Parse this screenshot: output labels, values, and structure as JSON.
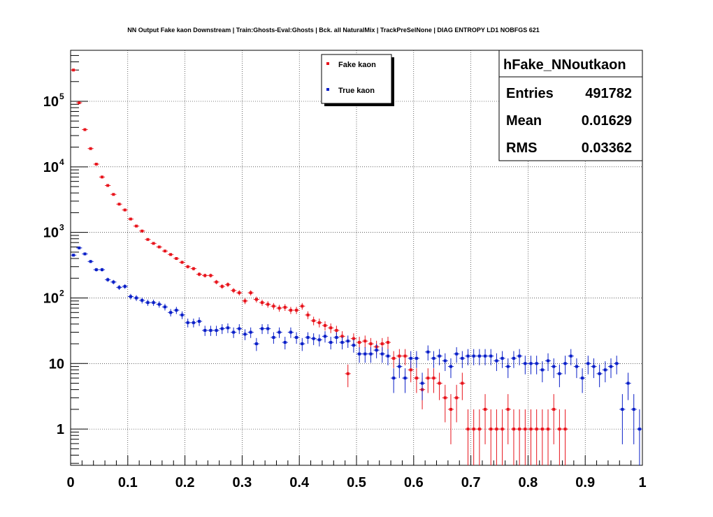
{
  "chart_data": {
    "type": "scatter",
    "title": "NN Output Fake kaon Downstream | Train:Ghosts-Eval:Ghosts | Bck. all NaturalMix | TrackPreSelNone | DIAG ENTROPY LD1 NOBFGS 621",
    "xlabel": "",
    "ylabel": "",
    "xlim": [
      0,
      1
    ],
    "ylim": [
      0.28,
      600000
    ],
    "y_scale": "log",
    "grid": true,
    "legend_position": "top-center",
    "x_ticks": [
      "0",
      "0.1",
      "0.2",
      "0.3",
      "0.4",
      "0.5",
      "0.6",
      "0.7",
      "0.8",
      "0.9",
      "1"
    ],
    "y_ticks": [
      {
        "value": 1,
        "base": "1",
        "exp": ""
      },
      {
        "value": 10,
        "base": "10",
        "exp": ""
      },
      {
        "value": 100,
        "base": "10",
        "exp": "2"
      },
      {
        "value": 1000,
        "base": "10",
        "exp": "3"
      },
      {
        "value": 10000,
        "base": "10",
        "exp": "4"
      },
      {
        "value": 100000,
        "base": "10",
        "exp": "5"
      }
    ],
    "series": [
      {
        "name": "Fake kaon",
        "color": "#e8141c",
        "x": [
          0.005,
          0.015,
          0.025,
          0.035,
          0.045,
          0.055,
          0.065,
          0.075,
          0.085,
          0.095,
          0.105,
          0.115,
          0.125,
          0.135,
          0.145,
          0.155,
          0.165,
          0.175,
          0.185,
          0.195,
          0.205,
          0.215,
          0.225,
          0.235,
          0.245,
          0.255,
          0.265,
          0.275,
          0.285,
          0.295,
          0.305,
          0.315,
          0.325,
          0.335,
          0.345,
          0.355,
          0.365,
          0.375,
          0.385,
          0.395,
          0.405,
          0.415,
          0.425,
          0.435,
          0.445,
          0.455,
          0.465,
          0.475,
          0.485,
          0.495,
          0.505,
          0.515,
          0.525,
          0.535,
          0.545,
          0.555,
          0.565,
          0.575,
          0.585,
          0.595,
          0.605,
          0.615,
          0.625,
          0.635,
          0.645,
          0.655,
          0.665,
          0.675,
          0.685,
          0.695,
          0.705,
          0.715,
          0.725,
          0.735,
          0.745,
          0.755,
          0.765,
          0.775,
          0.785,
          0.795,
          0.805,
          0.815,
          0.825,
          0.835,
          0.845,
          0.855,
          0.865
        ],
        "y": [
          300000,
          95000,
          37000,
          19000,
          11000,
          7000,
          5200,
          3800,
          2700,
          2200,
          1600,
          1250,
          1050,
          780,
          680,
          600,
          520,
          460,
          400,
          350,
          300,
          280,
          230,
          220,
          220,
          175,
          150,
          160,
          130,
          120,
          90,
          120,
          95,
          85,
          80,
          75,
          70,
          72,
          65,
          65,
          75,
          55,
          45,
          42,
          38,
          35,
          32,
          26,
          7,
          24,
          21,
          22,
          20,
          18,
          20,
          21,
          12,
          13,
          13,
          8,
          6,
          4,
          6,
          6,
          5,
          3,
          2,
          3,
          5,
          1,
          1,
          1,
          2,
          1,
          1,
          1,
          2,
          1,
          1,
          1,
          1,
          1,
          1,
          1,
          2,
          1,
          1
        ]
      },
      {
        "name": "True kaon",
        "color": "#0a1fc8",
        "x": [
          0.005,
          0.015,
          0.025,
          0.035,
          0.045,
          0.055,
          0.065,
          0.075,
          0.085,
          0.095,
          0.105,
          0.115,
          0.125,
          0.135,
          0.145,
          0.155,
          0.165,
          0.175,
          0.185,
          0.195,
          0.205,
          0.215,
          0.225,
          0.235,
          0.245,
          0.255,
          0.265,
          0.275,
          0.285,
          0.295,
          0.305,
          0.315,
          0.325,
          0.335,
          0.345,
          0.355,
          0.365,
          0.375,
          0.385,
          0.395,
          0.405,
          0.415,
          0.425,
          0.435,
          0.445,
          0.455,
          0.465,
          0.475,
          0.485,
          0.495,
          0.505,
          0.515,
          0.525,
          0.535,
          0.545,
          0.555,
          0.565,
          0.575,
          0.585,
          0.595,
          0.605,
          0.615,
          0.625,
          0.635,
          0.645,
          0.655,
          0.665,
          0.675,
          0.685,
          0.695,
          0.705,
          0.715,
          0.725,
          0.735,
          0.745,
          0.755,
          0.765,
          0.775,
          0.785,
          0.795,
          0.805,
          0.815,
          0.825,
          0.835,
          0.845,
          0.855,
          0.865,
          0.875,
          0.885,
          0.895,
          0.905,
          0.915,
          0.925,
          0.935,
          0.945,
          0.955,
          0.965,
          0.975,
          0.985,
          0.995
        ],
        "y": [
          450,
          580,
          470,
          360,
          270,
          270,
          190,
          175,
          145,
          150,
          105,
          100,
          92,
          85,
          85,
          80,
          73,
          60,
          65,
          55,
          42,
          42,
          44,
          32,
          32,
          32,
          34,
          35,
          30,
          34,
          28,
          30,
          20,
          34,
          34,
          25,
          30,
          21,
          30,
          25,
          20,
          25,
          24,
          23,
          26,
          21,
          25,
          21,
          22,
          19,
          14,
          14,
          14,
          16,
          14,
          13,
          6,
          9,
          6,
          12,
          12,
          5,
          15,
          12,
          13,
          11,
          9,
          14,
          12,
          13,
          13,
          13,
          13,
          13,
          11,
          12,
          9,
          12,
          13,
          10,
          10,
          10,
          8,
          11,
          9,
          7,
          10,
          13,
          9,
          6,
          10,
          9,
          7,
          8,
          9,
          10,
          2,
          5,
          2,
          1
        ]
      }
    ]
  },
  "legend": {
    "items": [
      {
        "label": "Fake kaon",
        "color": "#e8141c"
      },
      {
        "label": "True kaon",
        "color": "#0a1fc8"
      }
    ]
  },
  "stats_box": {
    "title": "hFake_NNoutkaon",
    "rows": [
      {
        "label": "Entries",
        "value": "491782"
      },
      {
        "label": "Mean",
        "value": "0.01629"
      },
      {
        "label": "RMS",
        "value": "0.03362"
      }
    ]
  }
}
